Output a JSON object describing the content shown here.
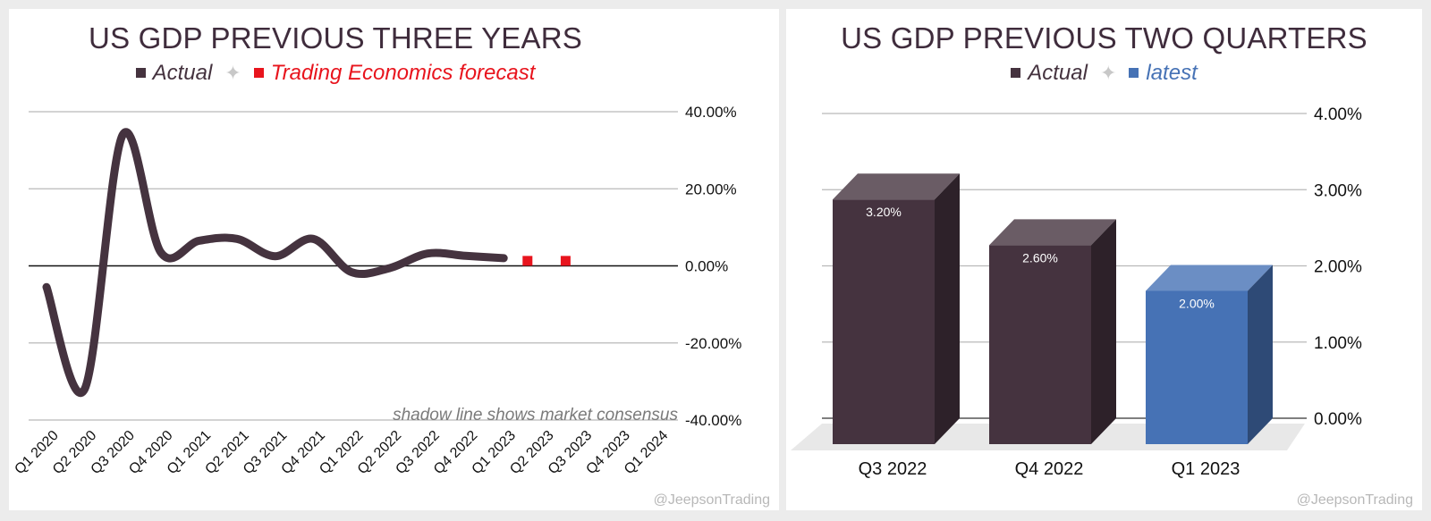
{
  "colors": {
    "actual": "#45333f",
    "forecast": "#e8141d",
    "latest": "#4672b5",
    "grid": "#b9b9b9",
    "zero": "#111111",
    "title": "#3f2c3c"
  },
  "left_panel": {
    "title": "US GDP PREVIOUS THREE YEARS",
    "legend": {
      "actual": "Actual",
      "separator": "✦",
      "forecast": "Trading Economics forecast"
    },
    "annotation": "shadow line shows market consensus",
    "credit": "@JeepsonTrading"
  },
  "right_panel": {
    "title": "US GDP PREVIOUS TWO QUARTERS",
    "legend": {
      "actual": "Actual",
      "separator": "✦",
      "latest": "latest"
    },
    "credit": "@JeepsonTrading"
  },
  "chart_data": [
    {
      "type": "line",
      "title": "US GDP PREVIOUS THREE YEARS",
      "categories": [
        "Q1 2020",
        "Q2 2020",
        "Q3 2020",
        "Q4 2020",
        "Q1 2021",
        "Q2 2021",
        "Q3 2021",
        "Q4 2021",
        "Q1 2022",
        "Q2 2022",
        "Q3 2022",
        "Q4 2022",
        "Q1 2023",
        "Q2 2023",
        "Q3 2023",
        "Q4 2023",
        "Q1 2024"
      ],
      "series": [
        {
          "name": "Actual",
          "values": [
            -5.5,
            -32,
            34,
            3.5,
            6.5,
            7,
            2.5,
            7,
            -1.6,
            -0.6,
            3.2,
            2.6,
            2.0,
            null,
            null,
            null,
            null
          ]
        },
        {
          "name": "Trading Economics forecast",
          "values": [
            null,
            null,
            null,
            null,
            null,
            null,
            null,
            null,
            null,
            null,
            null,
            null,
            null,
            1.3,
            1.3,
            null,
            null
          ]
        }
      ],
      "yticks": [
        "40.00%",
        "20.00%",
        "0.00%",
        "-20.00%",
        "-40.00%"
      ],
      "ylim": [
        -40,
        40
      ],
      "annotation": "shadow line shows market consensus"
    },
    {
      "type": "bar",
      "title": "US GDP PREVIOUS TWO QUARTERS",
      "categories": [
        "Q3 2022",
        "Q4 2022",
        "Q1 2023"
      ],
      "values": [
        3.2,
        2.6,
        2.0
      ],
      "labels": [
        "3.20%",
        "2.60%",
        "2.00%"
      ],
      "series_names": [
        "Actual",
        "Actual",
        "latest"
      ],
      "yticks": [
        "4.00%",
        "3.00%",
        "2.00%",
        "1.00%",
        "0.00%"
      ],
      "ylim": [
        0,
        4
      ]
    }
  ]
}
